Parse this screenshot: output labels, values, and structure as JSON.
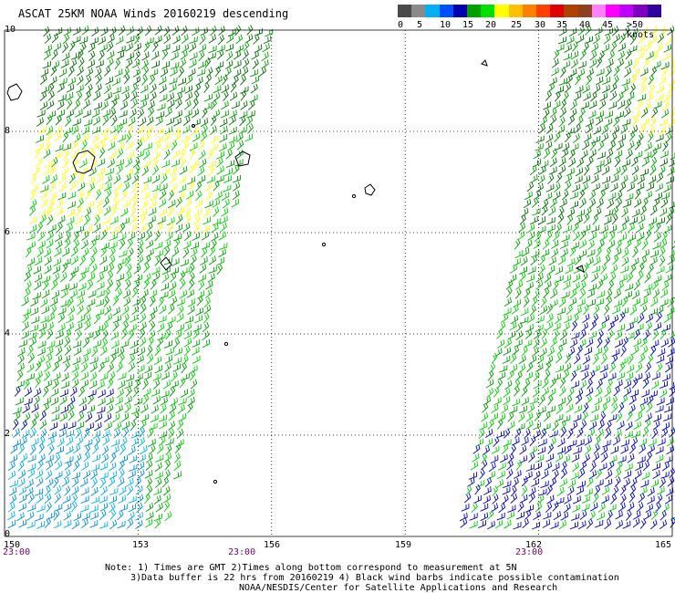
{
  "title": "ASCAT 25KM NOAA Winds 20160219 descending",
  "legend": {
    "colors": [
      "#4a4a4a",
      "#8a8a8a",
      "#00b0f0",
      "#0050ff",
      "#0000b0",
      "#00a000",
      "#00e000",
      "#ffff00",
      "#ffc000",
      "#ff8000",
      "#ff4000",
      "#e00000",
      "#b04000",
      "#904020",
      "#ff80ff",
      "#ff00ff",
      "#c000ff",
      "#8000c0",
      "#3000a0"
    ],
    "labels": [
      "0",
      "5",
      "10",
      "15",
      "20",
      "25",
      "30",
      "35",
      "40",
      "45",
      ">50 knots"
    ]
  },
  "axes": {
    "lat_ticks": [
      "10",
      "8",
      "6",
      "4",
      "2",
      "0"
    ],
    "lon_ticks": [
      "150",
      "153",
      "156",
      "159",
      "162",
      "165"
    ],
    "time_labels": [
      "23:00",
      "23:00",
      "23:00"
    ]
  },
  "swaths": [
    {
      "name": "west-swath",
      "lon_range": [
        150,
        155.6
      ],
      "time": "23:00"
    },
    {
      "name": "east-swath",
      "lon_range": [
        159.7,
        165
      ],
      "time": "23:00"
    }
  ],
  "notes": {
    "line1": "Note: 1) Times are GMT 2)Times along bottom correspond to measurement at 5N",
    "line2": "3)Data buffer is 22 hrs from 20160219 4) Black wind barbs indicate possible contamination",
    "line3": "NOAA/NESDIS/Center for Satellite Applications and Research"
  }
}
